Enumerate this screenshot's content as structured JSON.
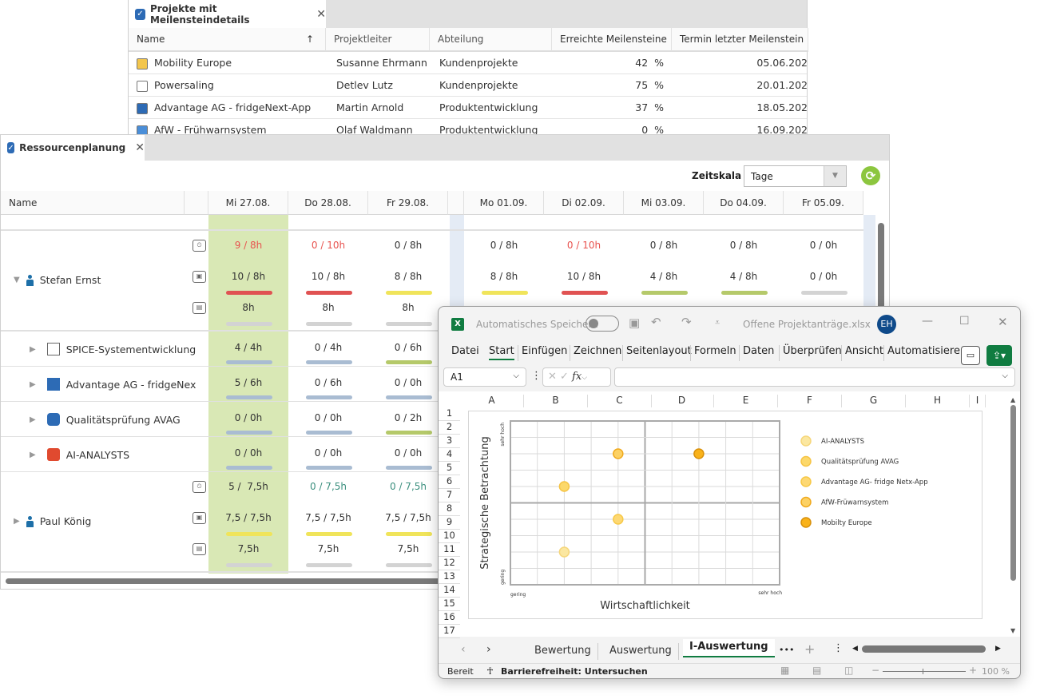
{
  "projects": {
    "tab_title": "Projekte mit Meilensteindetails",
    "columns": [
      "Name",
      "Projektleiter",
      "Abteilung",
      "Erreichte Meilensteine",
      "Termin letzter Meilenstein"
    ],
    "sort_icon": "arrow-up-icon",
    "rows": [
      {
        "name": "Mobility Europe",
        "lead": "Susanne Ehrmann",
        "dept": "Kundenprojekte",
        "pct": "42  %",
        "date": "05.06.202",
        "icon": "project-board-icon"
      },
      {
        "name": "Powersaling",
        "lead": "Detlev Lutz",
        "dept": "Kundenprojekte",
        "pct": "75  %",
        "date": "20.01.202",
        "icon": "chart-line-icon"
      },
      {
        "name": "Advantage AG - fridgeNext-App",
        "lead": "Martin Arnold",
        "dept": "Produktentwicklung",
        "pct": "37  %",
        "date": "18.05.202",
        "icon": "team-icon"
      },
      {
        "name": "AfW - Frühwarnsystem",
        "lead": "Olaf Waldmann",
        "dept": "Produktentwicklung",
        "pct": "0  %",
        "date": "16.09.202",
        "icon": "logo-w-icon"
      }
    ]
  },
  "resources": {
    "tab_title": "Ressourcenplanung",
    "zeitskala_label": "Zeitskala",
    "zeitskala_value": "Tage",
    "name_header": "Name",
    "days": [
      "Mi 27.08.",
      "Do 28.08.",
      "Fr 29.08.",
      "Mo 01.09.",
      "Di 02.09.",
      "Mi 03.09.",
      "Do 04.09.",
      "Fr 05.09."
    ],
    "colors": {
      "red": "#e05252",
      "yellow": "#f0e45a",
      "green": "#b5c96a",
      "blue": "#a9bcd2",
      "gray": "#d3d3d3",
      "highlight": "#d9e8b5"
    },
    "persons": [
      {
        "name": "Stefan Ernst",
        "expanded": true,
        "line1": [
          {
            "t": "9 / 8h",
            "c": "red"
          },
          {
            "t": "0 / 10h",
            "c": "red"
          },
          {
            "t": "0 / 8h"
          },
          {
            "t": "0 / 8h"
          },
          {
            "t": "0 / 10h",
            "c": "red"
          },
          {
            "t": "0 / 8h"
          },
          {
            "t": "0 / 8h"
          },
          {
            "t": "0 / 0h"
          }
        ],
        "line2": [
          {
            "t": "10 / 8h",
            "b": "red"
          },
          {
            "t": "10 / 8h",
            "b": "red"
          },
          {
            "t": "8 / 8h",
            "b": "yellow"
          },
          {
            "t": "8 / 8h",
            "b": "yellow"
          },
          {
            "t": "10 / 8h",
            "b": "red"
          },
          {
            "t": "4 / 8h",
            "b": "green"
          },
          {
            "t": "4 / 8h",
            "b": "green"
          },
          {
            "t": "0 / 0h",
            "b": "gray"
          }
        ],
        "line3": [
          {
            "t": "8h",
            "b": "gray"
          },
          {
            "t": "8h",
            "b": "gray"
          },
          {
            "t": "8h",
            "b": "gray"
          }
        ],
        "projects": [
          {
            "name": "SPICE-Systementwicklung",
            "icon": "project-board-icon",
            "cells": [
              {
                "t": "4 / 4h",
                "b": "blue"
              },
              {
                "t": "0 / 4h",
                "b": "blue"
              },
              {
                "t": "0 / 6h",
                "b": "green"
              }
            ]
          },
          {
            "name": "Advantage AG - fridgeNex",
            "icon": "team-icon",
            "cells": [
              {
                "t": "5 / 6h",
                "b": "blue"
              },
              {
                "t": "0 / 6h",
                "b": "blue"
              },
              {
                "t": "0 / 0h",
                "b": "blue"
              }
            ]
          },
          {
            "name": "Qualitätsprüfung AVAG",
            "icon": "check-icon",
            "cells": [
              {
                "t": "0 / 0h",
                "b": "blue"
              },
              {
                "t": "0 / 0h",
                "b": "blue"
              },
              {
                "t": "0 / 2h",
                "b": "green"
              }
            ]
          },
          {
            "name": "AI-ANALYSTS",
            "icon": "p-logo-icon",
            "cells": [
              {
                "t": "0 / 0h",
                "b": "blue"
              },
              {
                "t": "0 / 0h",
                "b": "blue"
              },
              {
                "t": "0 / 0h",
                "b": "blue"
              }
            ]
          }
        ]
      },
      {
        "name": "Paul König",
        "expanded": false,
        "line1": [
          {
            "t": "5 /  7,5h"
          },
          {
            "t": "0 / 7,5h",
            "c": "teal"
          },
          {
            "t": "0 / 7,5h",
            "c": "teal"
          }
        ],
        "line2": [
          {
            "t": "7,5 / 7,5h",
            "b": "yellow"
          },
          {
            "t": "7,5 / 7,5h",
            "b": "yellow"
          },
          {
            "t": "7,5 / 7,5h",
            "b": "yellow"
          }
        ],
        "line3": [
          {
            "t": "7,5h",
            "b": "gray"
          },
          {
            "t": "7,5h",
            "b": "gray"
          },
          {
            "t": "7,5h",
            "b": "gray"
          }
        ]
      }
    ]
  },
  "excel": {
    "autosave_label": "Automatisches Speichern",
    "filename": "Offene Projektanträge.xlsx",
    "avatar": "EH",
    "ribbon_tabs": [
      "Datei",
      "Start",
      "Einfügen",
      "Zeichnen",
      "Seitenlayout",
      "Formeln",
      "Daten",
      "Überprüfen",
      "Ansicht",
      "Automatisiere"
    ],
    "active_tab": "Start",
    "name_box": "A1",
    "fx": "fx",
    "columns": [
      "A",
      "B",
      "C",
      "D",
      "E",
      "F",
      "G",
      "H",
      "I"
    ],
    "rows": [
      "1",
      "2",
      "3",
      "4",
      "5",
      "6",
      "7",
      "8",
      "9",
      "10",
      "11",
      "12",
      "13",
      "14",
      "15",
      "16",
      "17"
    ],
    "sheets": [
      "Bewertung",
      "Auswertung",
      "I-Auswertung"
    ],
    "active_sheet": "I-Auswertung",
    "more": "•••",
    "status_ready": "Bereit",
    "accessibility": "Barrierefreiheit: Untersuchen",
    "zoom": "100 %",
    "accent": "#107c41"
  },
  "chart_data": {
    "type": "scatter",
    "xlabel": "Wirtschaftlichkeit",
    "ylabel": "Strategische Betrachtung",
    "x_low": "gering",
    "x_high": "sehr hoch",
    "y_low": "gering",
    "y_high": "sehr hoch",
    "xlim": [
      0,
      10
    ],
    "ylim": [
      0,
      10
    ],
    "grid": true,
    "legend": "right",
    "series": [
      {
        "name": "AI-ANALYSTS",
        "x": 2,
        "y": 2,
        "color": "#fbe7a0",
        "stroke": "#f6d67a"
      },
      {
        "name": "Qualitätsprüfung AVAG",
        "x": 2,
        "y": 6,
        "color": "#fcd86a",
        "stroke": "#f6c445"
      },
      {
        "name": "Advantage AG- fridge Netx-App",
        "x": 4,
        "y": 4,
        "color": "#fdd873",
        "stroke": "#f7c846"
      },
      {
        "name": "AfW-Früwarnsystem",
        "x": 4,
        "y": 8,
        "color": "#fcd164",
        "stroke": "#f0a91c"
      },
      {
        "name": "Mobilty Europe",
        "x": 7,
        "y": 8,
        "color": "#f9b21a",
        "stroke": "#d8900a"
      }
    ]
  }
}
